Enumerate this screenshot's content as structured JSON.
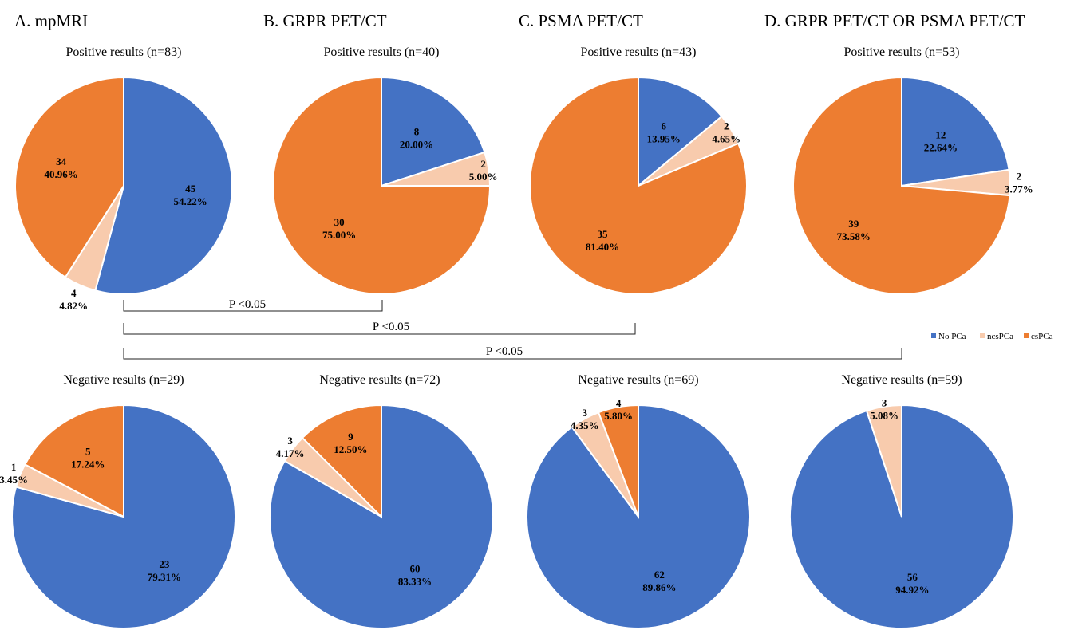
{
  "colors": {
    "no_pca": "#4472C4",
    "ncspca": "#F8CBAD",
    "cspca": "#ED7D31"
  },
  "legend": [
    {
      "key": "no_pca",
      "label": "No PCa"
    },
    {
      "key": "ncspca",
      "label": "ncsPCa"
    },
    {
      "key": "cspca",
      "label": "csPCa"
    }
  ],
  "panels": [
    {
      "title": "A. mpMRI"
    },
    {
      "title": "B. GRPR PET/CT"
    },
    {
      "title": "C. PSMA PET/CT"
    },
    {
      "title": "D. GRPR PET/CT OR PSMA PET/CT"
    }
  ],
  "comparisons": [
    {
      "label": "P <0.05",
      "from": "A",
      "to": "B"
    },
    {
      "label": "P <0.05",
      "from": "A",
      "to": "C"
    },
    {
      "label": "P <0.05",
      "from": "A",
      "to": "D"
    }
  ],
  "chart_data": [
    {
      "type": "pie",
      "panel": "A",
      "title": "Positive results (n=83)",
      "series": [
        {
          "name": "No PCa",
          "value": 45,
          "label": "45",
          "percent": "54.22%"
        },
        {
          "name": "ncsPCa",
          "value": 4,
          "label": "4",
          "percent": "4.82%"
        },
        {
          "name": "csPCa",
          "value": 34,
          "label": "34",
          "percent": "40.96%"
        }
      ]
    },
    {
      "type": "pie",
      "panel": "B",
      "title": "Positive results (n=40)",
      "series": [
        {
          "name": "No PCa",
          "value": 8,
          "label": "8",
          "percent": "20.00%"
        },
        {
          "name": "ncsPCa",
          "value": 2,
          "label": "2",
          "percent": "5.00%"
        },
        {
          "name": "csPCa",
          "value": 30,
          "label": "30",
          "percent": "75.00%"
        }
      ]
    },
    {
      "type": "pie",
      "panel": "C",
      "title": "Positive results (n=43)",
      "series": [
        {
          "name": "No PCa",
          "value": 6,
          "label": "6",
          "percent": "13.95%"
        },
        {
          "name": "ncsPCa",
          "value": 2,
          "label": "2",
          "percent": "4.65%"
        },
        {
          "name": "csPCa",
          "value": 35,
          "label": "35",
          "percent": "81.40%"
        }
      ]
    },
    {
      "type": "pie",
      "panel": "D",
      "title": "Positive results (n=53)",
      "series": [
        {
          "name": "No PCa",
          "value": 12,
          "label": "12",
          "percent": "22.64%"
        },
        {
          "name": "ncsPCa",
          "value": 2,
          "label": "2",
          "percent": "3.77%"
        },
        {
          "name": "csPCa",
          "value": 39,
          "label": "39",
          "percent": "73.58%"
        }
      ]
    },
    {
      "type": "pie",
      "panel": "A",
      "title": "Negative results (n=29)",
      "series": [
        {
          "name": "No PCa",
          "value": 23,
          "label": "23",
          "percent": "79.31%"
        },
        {
          "name": "ncsPCa",
          "value": 1,
          "label": "1",
          "percent": "3.45%"
        },
        {
          "name": "csPCa",
          "value": 5,
          "label": "5",
          "percent": "17.24%"
        }
      ]
    },
    {
      "type": "pie",
      "panel": "B",
      "title": "Negative results (n=72)",
      "series": [
        {
          "name": "No PCa",
          "value": 60,
          "label": "60",
          "percent": "83.33%"
        },
        {
          "name": "ncsPCa",
          "value": 3,
          "label": "3",
          "percent": "4.17%"
        },
        {
          "name": "csPCa",
          "value": 9,
          "label": "9",
          "percent": "12.50%"
        }
      ]
    },
    {
      "type": "pie",
      "panel": "C",
      "title": "Negative results (n=69)",
      "series": [
        {
          "name": "No PCa",
          "value": 62,
          "label": "62",
          "percent": "89.86%"
        },
        {
          "name": "ncsPCa",
          "value": 3,
          "label": "3",
          "percent": "4.35%"
        },
        {
          "name": "csPCa",
          "value": 4,
          "label": "4",
          "percent": "5.80%"
        }
      ]
    },
    {
      "type": "pie",
      "panel": "D",
      "title": "Negative results (n=59)",
      "series": [
        {
          "name": "No PCa",
          "value": 56,
          "label": "56",
          "percent": "94.92%"
        },
        {
          "name": "ncsPCa",
          "value": 3,
          "label": "3",
          "percent": "5.08%"
        }
      ]
    }
  ]
}
